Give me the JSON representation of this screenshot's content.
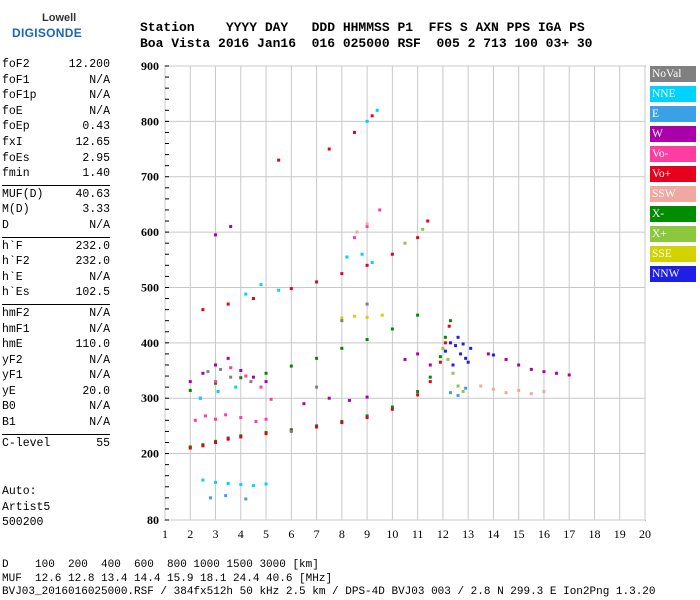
{
  "logo": {
    "top": "Lowell",
    "bottom": "DIGISONDE"
  },
  "header": {
    "line1": "Station    YYYY DAY   DDD HHMMSS P1  FFS S AXN PPS IGA PS",
    "line2": "Boa Vista 2016 Jan16  016 025000 RSF  005 2 713 100 03+ 30"
  },
  "params": {
    "group1": [
      {
        "name": "foF2",
        "value": "12.200"
      },
      {
        "name": "foF1",
        "value": "N/A"
      },
      {
        "name": "foF1p",
        "value": "N/A"
      },
      {
        "name": "foE",
        "value": "N/A"
      },
      {
        "name": "foEp",
        "value": "0.43"
      },
      {
        "name": "fxI",
        "value": "12.65"
      },
      {
        "name": "foEs",
        "value": "2.95"
      },
      {
        "name": "fmin",
        "value": "1.40"
      }
    ],
    "group2": [
      {
        "name": "MUF(D)",
        "value": "40.63"
      },
      {
        "name": "M(D)",
        "value": "3.33"
      },
      {
        "name": "D",
        "value": "N/A"
      }
    ],
    "group3": [
      {
        "name": "h`F",
        "value": "232.0"
      },
      {
        "name": "h`F2",
        "value": "232.0"
      },
      {
        "name": "h`E",
        "value": "N/A"
      },
      {
        "name": "h`Es",
        "value": "102.5"
      }
    ],
    "group4": [
      {
        "name": "hmF2",
        "value": "N/A"
      },
      {
        "name": "hmF1",
        "value": "N/A"
      },
      {
        "name": "hmE",
        "value": "110.0"
      },
      {
        "name": "yF2",
        "value": "N/A"
      },
      {
        "name": "yF1",
        "value": "N/A"
      },
      {
        "name": "yE",
        "value": "20.0"
      },
      {
        "name": "B0",
        "value": "N/A"
      },
      {
        "name": "B1",
        "value": "N/A"
      }
    ],
    "group5": [
      {
        "name": "C-level",
        "value": "55"
      }
    ]
  },
  "auto": {
    "line1": "Auto:",
    "line2": "Artist5",
    "line3": "500200"
  },
  "footer": {
    "line1": "D    100  200  400  600  800 1000 1500 3000 [km]",
    "line2": "MUF  12.6 12.8 13.4 14.4 15.9 18.1 24.4 40.6 [MHz]",
    "line3": "BVJ03_2016016025000.RSF / 384fx512h 50 kHz 2.5 km / DPS-4D BVJ03 003 / 2.8 N 299.3 E Ion2Png 1.3.20"
  },
  "legend": [
    {
      "label": "NoVal",
      "color": "#808080"
    },
    {
      "label": "NNE",
      "color": "#00d2ff"
    },
    {
      "label": "E",
      "color": "#3ca0e6"
    },
    {
      "label": "W",
      "color": "#aa00aa"
    },
    {
      "label": "Vo-",
      "color": "#ff3ca0"
    },
    {
      "label": "Vo+",
      "color": "#e6001e"
    },
    {
      "label": "SSW",
      "color": "#f0a8a0"
    },
    {
      "label": "X-",
      "color": "#008c00"
    },
    {
      "label": "X+",
      "color": "#8cc83c"
    },
    {
      "label": "SSE",
      "color": "#d2d200"
    },
    {
      "label": "NNW",
      "color": "#1e1ee6"
    }
  ],
  "chart_data": {
    "type": "scatter",
    "xlim": [
      1,
      20
    ],
    "ylim": [
      80,
      900
    ],
    "xticks": [
      1,
      2,
      3,
      4,
      5,
      6,
      7,
      8,
      9,
      10,
      11,
      12,
      13,
      14,
      15,
      16,
      17,
      18,
      19,
      20
    ],
    "yticks": [
      80,
      200,
      300,
      400,
      500,
      600,
      700,
      800,
      900
    ],
    "grid": true,
    "legend_position": "right",
    "series": [
      {
        "name": "X-",
        "color": "#008c00",
        "points": [
          [
            2.0,
            212
          ],
          [
            2.5,
            216
          ],
          [
            3.0,
            222
          ],
          [
            3.5,
            228
          ],
          [
            4,
            232
          ],
          [
            5,
            238
          ],
          [
            6,
            243
          ],
          [
            7,
            250
          ],
          [
            8,
            258
          ],
          [
            9,
            268
          ],
          [
            10,
            284
          ],
          [
            11,
            312
          ],
          [
            11.5,
            338
          ],
          [
            11.9,
            375
          ],
          [
            12.1,
            410
          ],
          [
            12.3,
            440
          ],
          [
            2.0,
            314
          ],
          [
            3.0,
            327
          ],
          [
            4,
            337
          ],
          [
            5,
            345
          ],
          [
            6,
            358
          ],
          [
            7,
            372
          ],
          [
            8,
            390
          ],
          [
            9,
            406
          ],
          [
            10,
            425
          ],
          [
            11,
            450
          ]
        ]
      },
      {
        "name": "Vo+",
        "color": "#e6001e",
        "points": [
          [
            2.0,
            210
          ],
          [
            2.5,
            214
          ],
          [
            3.0,
            220
          ],
          [
            3.5,
            226
          ],
          [
            4,
            230
          ],
          [
            5,
            236
          ],
          [
            6,
            241
          ],
          [
            7,
            248
          ],
          [
            8,
            256
          ],
          [
            9,
            265
          ],
          [
            10,
            280
          ],
          [
            11,
            306
          ],
          [
            11.5,
            330
          ],
          [
            11.9,
            365
          ],
          [
            12.1,
            400
          ],
          [
            12.25,
            430
          ],
          [
            2.5,
            460
          ],
          [
            3.5,
            470
          ],
          [
            4.5,
            480
          ],
          [
            6,
            498
          ],
          [
            7,
            510
          ],
          [
            8,
            525
          ],
          [
            9,
            540
          ],
          [
            10,
            560
          ],
          [
            11,
            590
          ],
          [
            11.4,
            620
          ],
          [
            5.5,
            730
          ],
          [
            7.5,
            750
          ],
          [
            8.5,
            780
          ],
          [
            9.2,
            810
          ]
        ]
      },
      {
        "name": "X+",
        "color": "#8cc83c",
        "points": [
          [
            12.0,
            390
          ],
          [
            12.2,
            370
          ],
          [
            12.4,
            345
          ],
          [
            12.6,
            322
          ],
          [
            12.8,
            312
          ],
          [
            10.5,
            580
          ],
          [
            11.2,
            605
          ]
        ]
      },
      {
        "name": "Vo-",
        "color": "#ff3ca0",
        "points": [
          [
            2.2,
            260
          ],
          [
            2.6,
            268
          ],
          [
            3.0,
            262
          ],
          [
            3.4,
            270
          ],
          [
            4.0,
            265
          ],
          [
            4.6,
            258
          ],
          [
            5.0,
            262
          ],
          [
            2.4,
            300
          ],
          [
            3.0,
            330
          ],
          [
            3.6,
            355
          ],
          [
            4.2,
            340
          ],
          [
            4.8,
            320
          ],
          [
            5.2,
            298
          ],
          [
            9.0,
            610
          ],
          [
            9.5,
            640
          ],
          [
            8.5,
            590
          ]
        ]
      },
      {
        "name": "W",
        "color": "#aa00aa",
        "points": [
          [
            2.0,
            330
          ],
          [
            2.5,
            345
          ],
          [
            3.0,
            360
          ],
          [
            3.5,
            372
          ],
          [
            4.0,
            350
          ],
          [
            4.5,
            338
          ],
          [
            5.0,
            330
          ],
          [
            6.5,
            290
          ],
          [
            7.5,
            300
          ],
          [
            8.3,
            296
          ],
          [
            9.0,
            302
          ],
          [
            10.5,
            370
          ],
          [
            11.0,
            380
          ],
          [
            11.5,
            360
          ],
          [
            13.8,
            380
          ],
          [
            14.5,
            370
          ],
          [
            15.0,
            360
          ],
          [
            15.5,
            352
          ],
          [
            16.0,
            348
          ],
          [
            16.5,
            345
          ],
          [
            17.0,
            342
          ],
          [
            3.0,
            595
          ],
          [
            3.6,
            610
          ]
        ]
      },
      {
        "name": "NNE",
        "color": "#00d2ff",
        "points": [
          [
            2.5,
            152
          ],
          [
            3.0,
            148
          ],
          [
            3.5,
            146
          ],
          [
            4.0,
            144
          ],
          [
            4.5,
            142
          ],
          [
            5.0,
            145
          ],
          [
            2.4,
            300
          ],
          [
            3.1,
            312
          ],
          [
            3.8,
            320
          ],
          [
            4.2,
            488
          ],
          [
            4.8,
            505
          ],
          [
            5.5,
            495
          ],
          [
            8.2,
            555
          ],
          [
            8.8,
            560
          ],
          [
            9.2,
            545
          ],
          [
            9.0,
            800
          ],
          [
            9.4,
            820
          ]
        ]
      },
      {
        "name": "E",
        "color": "#3ca0e6",
        "points": [
          [
            2.8,
            120
          ],
          [
            3.4,
            124
          ],
          [
            4.2,
            118
          ],
          [
            12.3,
            310
          ],
          [
            12.6,
            305
          ],
          [
            12.9,
            318
          ]
        ]
      },
      {
        "name": "SSW",
        "color": "#f0a8a0",
        "points": [
          [
            13.5,
            322
          ],
          [
            14.0,
            316
          ],
          [
            14.5,
            310
          ],
          [
            15.0,
            314
          ],
          [
            15.5,
            308
          ],
          [
            16.0,
            312
          ],
          [
            8.6,
            600
          ],
          [
            9.0,
            615
          ]
        ]
      },
      {
        "name": "SSE",
        "color": "#d2d200",
        "points": [
          [
            8.0,
            445
          ],
          [
            8.5,
            448
          ],
          [
            9.0,
            446
          ],
          [
            9.6,
            450
          ]
        ]
      },
      {
        "name": "NNW",
        "color": "#1e1ee6",
        "points": [
          [
            12.1,
            385
          ],
          [
            12.3,
            400
          ],
          [
            12.5,
            395
          ],
          [
            12.7,
            380
          ],
          [
            12.9,
            372
          ],
          [
            13.1,
            390
          ],
          [
            12.4,
            360
          ],
          [
            12.6,
            410
          ],
          [
            12.8,
            398
          ],
          [
            13.0,
            365
          ],
          [
            14.0,
            378
          ]
        ]
      },
      {
        "name": "NoVal",
        "color": "#808080",
        "points": [
          [
            2.7,
            348
          ],
          [
            3.2,
            352
          ],
          [
            3.6,
            338
          ],
          [
            4.4,
            330
          ],
          [
            6.0,
            240
          ],
          [
            7.0,
            320
          ],
          [
            8.0,
            440
          ],
          [
            9.0,
            470
          ]
        ]
      }
    ]
  }
}
